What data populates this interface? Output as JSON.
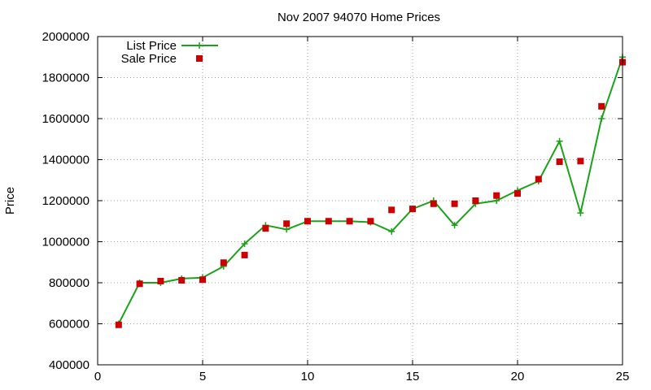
{
  "chart_data": {
    "type": "line",
    "title": "Nov 2007 94070 Home Prices",
    "xlabel": "",
    "ylabel": "Price",
    "xlim": [
      0,
      25
    ],
    "ylim": [
      400000,
      2000000
    ],
    "x_ticks": [
      0,
      5,
      10,
      15,
      20,
      25
    ],
    "y_ticks": [
      400000,
      600000,
      800000,
      1000000,
      1200000,
      1400000,
      1600000,
      1800000,
      2000000
    ],
    "grid": true,
    "legend_position": "top-left",
    "series": [
      {
        "name": "List Price",
        "style": "line-with-plus-markers",
        "color": "#1aa31a",
        "x": [
          1,
          2,
          3,
          4,
          5,
          6,
          7,
          8,
          9,
          10,
          11,
          12,
          13,
          14,
          15,
          16,
          17,
          18,
          19,
          20,
          21,
          22,
          23,
          24,
          25
        ],
        "values": [
          600000,
          800000,
          800000,
          820000,
          825000,
          880000,
          990000,
          1080000,
          1060000,
          1100000,
          1100000,
          1100000,
          1095000,
          1050000,
          1160000,
          1200000,
          1080000,
          1185000,
          1200000,
          1250000,
          1295000,
          1490000,
          1140000,
          1600000,
          1900000
        ]
      },
      {
        "name": "Sale Price",
        "style": "square-markers",
        "color": "#cc0000",
        "x": [
          1,
          2,
          3,
          4,
          5,
          6,
          7,
          8,
          9,
          10,
          11,
          12,
          13,
          14,
          15,
          16,
          17,
          18,
          19,
          20,
          21,
          22,
          23,
          24,
          25
        ],
        "values": [
          595000,
          795000,
          808000,
          812000,
          815000,
          898000,
          935000,
          1065000,
          1088000,
          1100000,
          1100000,
          1100000,
          1100000,
          1155000,
          1160000,
          1185000,
          1185000,
          1200000,
          1225000,
          1235000,
          1305000,
          1390000,
          1393000,
          1660000,
          1875000
        ]
      }
    ]
  }
}
